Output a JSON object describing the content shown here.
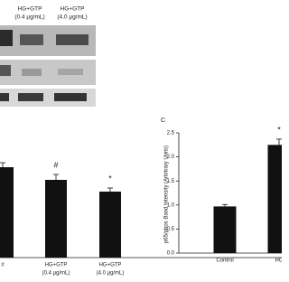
{
  "blot": {
    "labels": [
      [
        "HG+GTP",
        "(0.4 μg/mL)"
      ],
      [
        "HG+GTP",
        "(4.0 μg/mL)"
      ]
    ]
  },
  "chart_data": [
    {
      "type": "bar",
      "categories": [
        [
          "#"
        ],
        [
          "HG+GTP",
          "(0.4 μg/mL)"
        ],
        [
          "HG+GTP",
          "(4.0 μg/mL)"
        ]
      ],
      "values": [
        1.0,
        0.86,
        0.73
      ],
      "errors": [
        0.05,
        0.06,
        0.04
      ],
      "annotations": [
        null,
        "#",
        "*"
      ],
      "color": "#111111",
      "ylim": [
        0,
        1.2
      ]
    },
    {
      "type": "bar",
      "panel": "C",
      "ylabel": "p65/phos Band Intensity (Arbitrary Units)",
      "categories": [
        [
          "Control"
        ],
        [
          "HG"
        ]
      ],
      "values": [
        0.97,
        2.25
      ],
      "errors": [
        0.04,
        0.12
      ],
      "annotations": [
        null,
        "*"
      ],
      "color": "#111111",
      "ylim": [
        0,
        2.5
      ],
      "yticks": [
        {
          "value": 0,
          "label": "0.0"
        },
        {
          "value": 0.5,
          "label": "0.5"
        },
        {
          "value": 1,
          "label": "1.0"
        },
        {
          "value": 1.5,
          "label": "1.5"
        },
        {
          "value": 2,
          "label": "2.0"
        },
        {
          "value": 2.5,
          "label": "2.5"
        }
      ]
    }
  ]
}
